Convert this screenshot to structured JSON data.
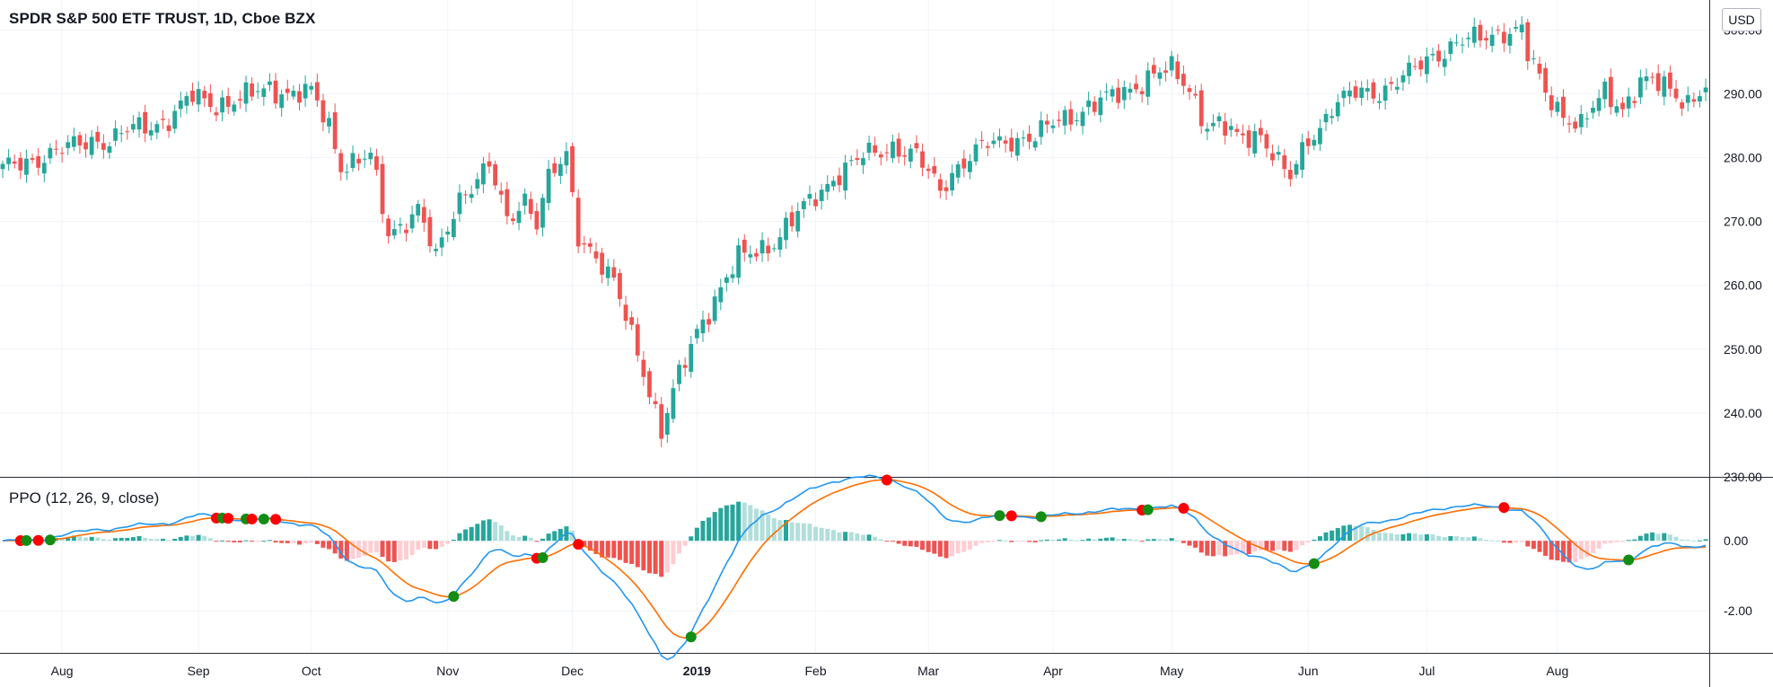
{
  "header": {
    "title": "SPDR S&P 500 ETF TRUST, 1D, Cboe BZX",
    "currency": "USD"
  },
  "indicator": {
    "title": "PPO (12, 26, 9, close)"
  },
  "colors": {
    "up": "#26a69a",
    "down": "#ef5350",
    "ppo_line": "#2196f3",
    "signal_line": "#ff6d00",
    "hist_up_strong": "#26a69a",
    "hist_up_weak": "#b2dfdb",
    "hist_down_strong": "#ef5350",
    "hist_down_weak": "#ffcdd2",
    "cross_up": "#138d13",
    "cross_down": "#ff0000",
    "grid": "#f0f3fa",
    "axis_text": "#131722"
  },
  "chart_data": [
    {
      "type": "candlestick",
      "title": "SPDR S&P 500 ETF TRUST, 1D, Cboe BZX",
      "y_axis_position": "right",
      "ylim": [
        230,
        303
      ],
      "y_ticks": [
        230,
        240,
        250,
        260,
        270,
        280,
        290,
        300
      ],
      "y_tick_labels": [
        "230.00",
        "240.00",
        "250.00",
        "260.00",
        "270.00",
        "280.00",
        "290.00",
        "300.00"
      ],
      "x_labels": [
        "Aug",
        "Sep",
        "Oct",
        "Nov",
        "Dec",
        "2019",
        "Feb",
        "Mar",
        "Apr",
        "May",
        "Jun",
        "Jul",
        "Aug"
      ],
      "x_label_bold_index": 5,
      "x_label_day_index": [
        10,
        33,
        52,
        75,
        96,
        117,
        137,
        156,
        177,
        197,
        220,
        240,
        262
      ],
      "n_days": 288,
      "anchors": {
        "day": [
          0,
          4,
          10,
          15,
          18,
          22,
          28,
          32,
          36,
          40,
          45,
          49,
          52,
          55,
          57,
          62,
          65,
          70,
          73,
          77,
          82,
          85,
          88,
          90,
          92,
          95,
          97,
          99,
          103,
          105,
          108,
          111,
          113,
          115,
          117,
          120,
          124,
          130,
          135,
          140,
          145,
          150,
          154,
          158,
          160,
          163,
          166,
          170,
          174,
          178,
          182,
          186,
          190,
          194,
          197,
          200,
          203,
          205,
          208,
          212,
          215,
          217,
          220,
          222,
          224,
          228,
          232,
          237,
          241,
          245,
          249,
          253,
          256,
          257,
          260,
          263,
          266,
          270,
          273,
          276,
          280,
          284,
          287
        ],
        "close": [
          278,
          279.5,
          281,
          283,
          282.5,
          284.5,
          286,
          289.5,
          288.5,
          289,
          291,
          290,
          290,
          285,
          279,
          280,
          268,
          272,
          264,
          274,
          278.5,
          270,
          274,
          270,
          276.5,
          280,
          268,
          266,
          260,
          255,
          247,
          237,
          243,
          248,
          253,
          258,
          264,
          267,
          272,
          277,
          280,
          282,
          280,
          275,
          278,
          280,
          282,
          283,
          283,
          286,
          287.5,
          289,
          291,
          293,
          293.5,
          291,
          285,
          285,
          283,
          284,
          279,
          276.5,
          283,
          285,
          288,
          290,
          290.5,
          293,
          296,
          298,
          298.5,
          300,
          300,
          296,
          290,
          287,
          285,
          290,
          288,
          292,
          291,
          289,
          291
        ]
      },
      "notable_points": [
        {
          "date": "2018-12-24",
          "low": 234
        },
        {
          "date": "2019-07-26",
          "high": 302
        }
      ]
    },
    {
      "type": "line",
      "name": "PPO (12, 26, 9, close)",
      "series": [
        {
          "name": "PPO",
          "values": "computed from close: 100*(EMA12-EMA26)/EMA26"
        },
        {
          "name": "Signal",
          "values": "EMA9 of PPO"
        },
        {
          "name": "Histogram",
          "values": "PPO - Signal"
        }
      ],
      "ylim": [
        -3.2,
        1.8
      ],
      "y_ticks": [
        -2,
        0
      ],
      "y_tick_labels": [
        "-2.00",
        "0.00"
      ],
      "crossover_markers": "green dot = PPO crosses above signal, red dot = PPO crosses below signal"
    }
  ]
}
